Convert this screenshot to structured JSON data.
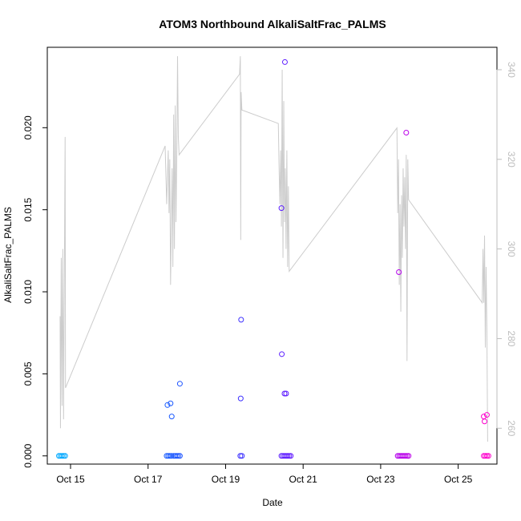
{
  "chart_data": {
    "type": "scatter",
    "title": "ATOM3 Northbound AlkaliSaltFrac_PALMS",
    "xlabel": "Date",
    "ylabel": "AlkaliSaltFrac_PALMS",
    "x_ticks": [
      "Oct 15",
      "Oct 17",
      "Oct 19",
      "Oct 21",
      "Oct 23",
      "Oct 25"
    ],
    "y_ticks": [
      "0.000",
      "0.005",
      "0.010",
      "0.015",
      "0.020"
    ],
    "y2_ticks": [
      "260",
      "280",
      "300",
      "320",
      "340"
    ],
    "xlim_days": [
      14.4,
      26.0
    ],
    "ylim": [
      -0.0005,
      0.0249
    ],
    "y2lim": [
      252,
      345
    ],
    "grid": false,
    "point_series": {
      "name": "",
      "color_gradient": [
        "#00aaff",
        "#2244ff",
        "#8800ff",
        "#ff00cc"
      ],
      "points": [
        {
          "x": 14.7,
          "y": 0.0
        },
        {
          "x": 14.74,
          "y": 0.0
        },
        {
          "x": 14.78,
          "y": 0.0
        },
        {
          "x": 14.82,
          "y": 0.0
        },
        {
          "x": 14.86,
          "y": 0.0
        },
        {
          "x": 17.48,
          "y": 0.0
        },
        {
          "x": 17.52,
          "y": 0.0
        },
        {
          "x": 17.56,
          "y": 0.0
        },
        {
          "x": 17.6,
          "y": 0.0
        },
        {
          "x": 17.66,
          "y": 0.0
        },
        {
          "x": 17.7,
          "y": 0.0
        },
        {
          "x": 17.74,
          "y": 0.0
        },
        {
          "x": 17.78,
          "y": 0.0
        },
        {
          "x": 17.82,
          "y": 0.0
        },
        {
          "x": 17.5,
          "y": 0.0031
        },
        {
          "x": 17.58,
          "y": 0.0032
        },
        {
          "x": 17.61,
          "y": 0.0024
        },
        {
          "x": 17.82,
          "y": 0.0044
        },
        {
          "x": 19.38,
          "y": 0.0
        },
        {
          "x": 19.42,
          "y": 0.0
        },
        {
          "x": 19.4,
          "y": 0.0083
        },
        {
          "x": 19.39,
          "y": 0.0035
        },
        {
          "x": 20.44,
          "y": 0.0
        },
        {
          "x": 20.48,
          "y": 0.0
        },
        {
          "x": 20.52,
          "y": 0.0
        },
        {
          "x": 20.56,
          "y": 0.0
        },
        {
          "x": 20.6,
          "y": 0.0
        },
        {
          "x": 20.64,
          "y": 0.0
        },
        {
          "x": 20.68,
          "y": 0.0
        },
        {
          "x": 20.44,
          "y": 0.0151
        },
        {
          "x": 20.53,
          "y": 0.024
        },
        {
          "x": 20.45,
          "y": 0.0062
        },
        {
          "x": 20.52,
          "y": 0.0038
        },
        {
          "x": 20.56,
          "y": 0.0038
        },
        {
          "x": 23.44,
          "y": 0.0
        },
        {
          "x": 23.48,
          "y": 0.0
        },
        {
          "x": 23.52,
          "y": 0.0
        },
        {
          "x": 23.56,
          "y": 0.0
        },
        {
          "x": 23.6,
          "y": 0.0
        },
        {
          "x": 23.64,
          "y": 0.0
        },
        {
          "x": 23.68,
          "y": 0.0
        },
        {
          "x": 23.72,
          "y": 0.0
        },
        {
          "x": 23.47,
          "y": 0.0112
        },
        {
          "x": 23.66,
          "y": 0.0197
        },
        {
          "x": 25.66,
          "y": 0.0
        },
        {
          "x": 25.7,
          "y": 0.0
        },
        {
          "x": 25.74,
          "y": 0.0
        },
        {
          "x": 25.78,
          "y": 0.0
        },
        {
          "x": 25.66,
          "y": 0.0024
        },
        {
          "x": 25.68,
          "y": 0.0021
        },
        {
          "x": 25.74,
          "y": 0.0025
        }
      ]
    },
    "line_series": {
      "name": "",
      "axis": "right",
      "color": "#cccccc",
      "points": [
        {
          "x": 14.73,
          "y": 285
        },
        {
          "x": 14.74,
          "y": 260
        },
        {
          "x": 14.76,
          "y": 298
        },
        {
          "x": 14.78,
          "y": 265
        },
        {
          "x": 14.8,
          "y": 300
        },
        {
          "x": 14.82,
          "y": 262
        },
        {
          "x": 14.86,
          "y": 325
        },
        {
          "x": 14.87,
          "y": 269
        },
        {
          "x": 17.44,
          "y": 323
        },
        {
          "x": 17.48,
          "y": 310
        },
        {
          "x": 17.52,
          "y": 322
        },
        {
          "x": 17.54,
          "y": 308
        },
        {
          "x": 17.56,
          "y": 320
        },
        {
          "x": 17.58,
          "y": 292
        },
        {
          "x": 17.6,
          "y": 305
        },
        {
          "x": 17.62,
          "y": 318
        },
        {
          "x": 17.64,
          "y": 296
        },
        {
          "x": 17.66,
          "y": 330
        },
        {
          "x": 17.68,
          "y": 300
        },
        {
          "x": 17.7,
          "y": 332
        },
        {
          "x": 17.72,
          "y": 306
        },
        {
          "x": 17.74,
          "y": 320
        },
        {
          "x": 17.76,
          "y": 343
        },
        {
          "x": 17.78,
          "y": 325
        },
        {
          "x": 17.8,
          "y": 321
        },
        {
          "x": 19.36,
          "y": 339
        },
        {
          "x": 19.38,
          "y": 343
        },
        {
          "x": 19.39,
          "y": 302
        },
        {
          "x": 19.4,
          "y": 335
        },
        {
          "x": 19.42,
          "y": 331
        },
        {
          "x": 20.36,
          "y": 328
        },
        {
          "x": 20.38,
          "y": 318
        },
        {
          "x": 20.4,
          "y": 310
        },
        {
          "x": 20.42,
          "y": 322
        },
        {
          "x": 20.44,
          "y": 305
        },
        {
          "x": 20.46,
          "y": 340
        },
        {
          "x": 20.48,
          "y": 298
        },
        {
          "x": 20.5,
          "y": 333
        },
        {
          "x": 20.52,
          "y": 306
        },
        {
          "x": 20.54,
          "y": 318
        },
        {
          "x": 20.56,
          "y": 300
        },
        {
          "x": 20.58,
          "y": 322
        },
        {
          "x": 20.6,
          "y": 296
        },
        {
          "x": 20.62,
          "y": 314
        },
        {
          "x": 20.64,
          "y": 295
        },
        {
          "x": 23.42,
          "y": 327
        },
        {
          "x": 23.44,
          "y": 308
        },
        {
          "x": 23.46,
          "y": 320
        },
        {
          "x": 23.48,
          "y": 292
        },
        {
          "x": 23.5,
          "y": 310
        },
        {
          "x": 23.52,
          "y": 286
        },
        {
          "x": 23.54,
          "y": 312
        },
        {
          "x": 23.56,
          "y": 298
        },
        {
          "x": 23.58,
          "y": 318
        },
        {
          "x": 23.6,
          "y": 305
        },
        {
          "x": 23.62,
          "y": 316
        },
        {
          "x": 23.64,
          "y": 300
        },
        {
          "x": 23.66,
          "y": 321
        },
        {
          "x": 23.68,
          "y": 275
        },
        {
          "x": 23.7,
          "y": 320
        },
        {
          "x": 23.72,
          "y": 311
        },
        {
          "x": 25.62,
          "y": 288
        },
        {
          "x": 25.64,
          "y": 300
        },
        {
          "x": 25.66,
          "y": 288
        },
        {
          "x": 25.68,
          "y": 303
        },
        {
          "x": 25.7,
          "y": 278
        },
        {
          "x": 25.72,
          "y": 296
        },
        {
          "x": 25.74,
          "y": 282
        },
        {
          "x": 25.76,
          "y": 257
        }
      ]
    }
  }
}
